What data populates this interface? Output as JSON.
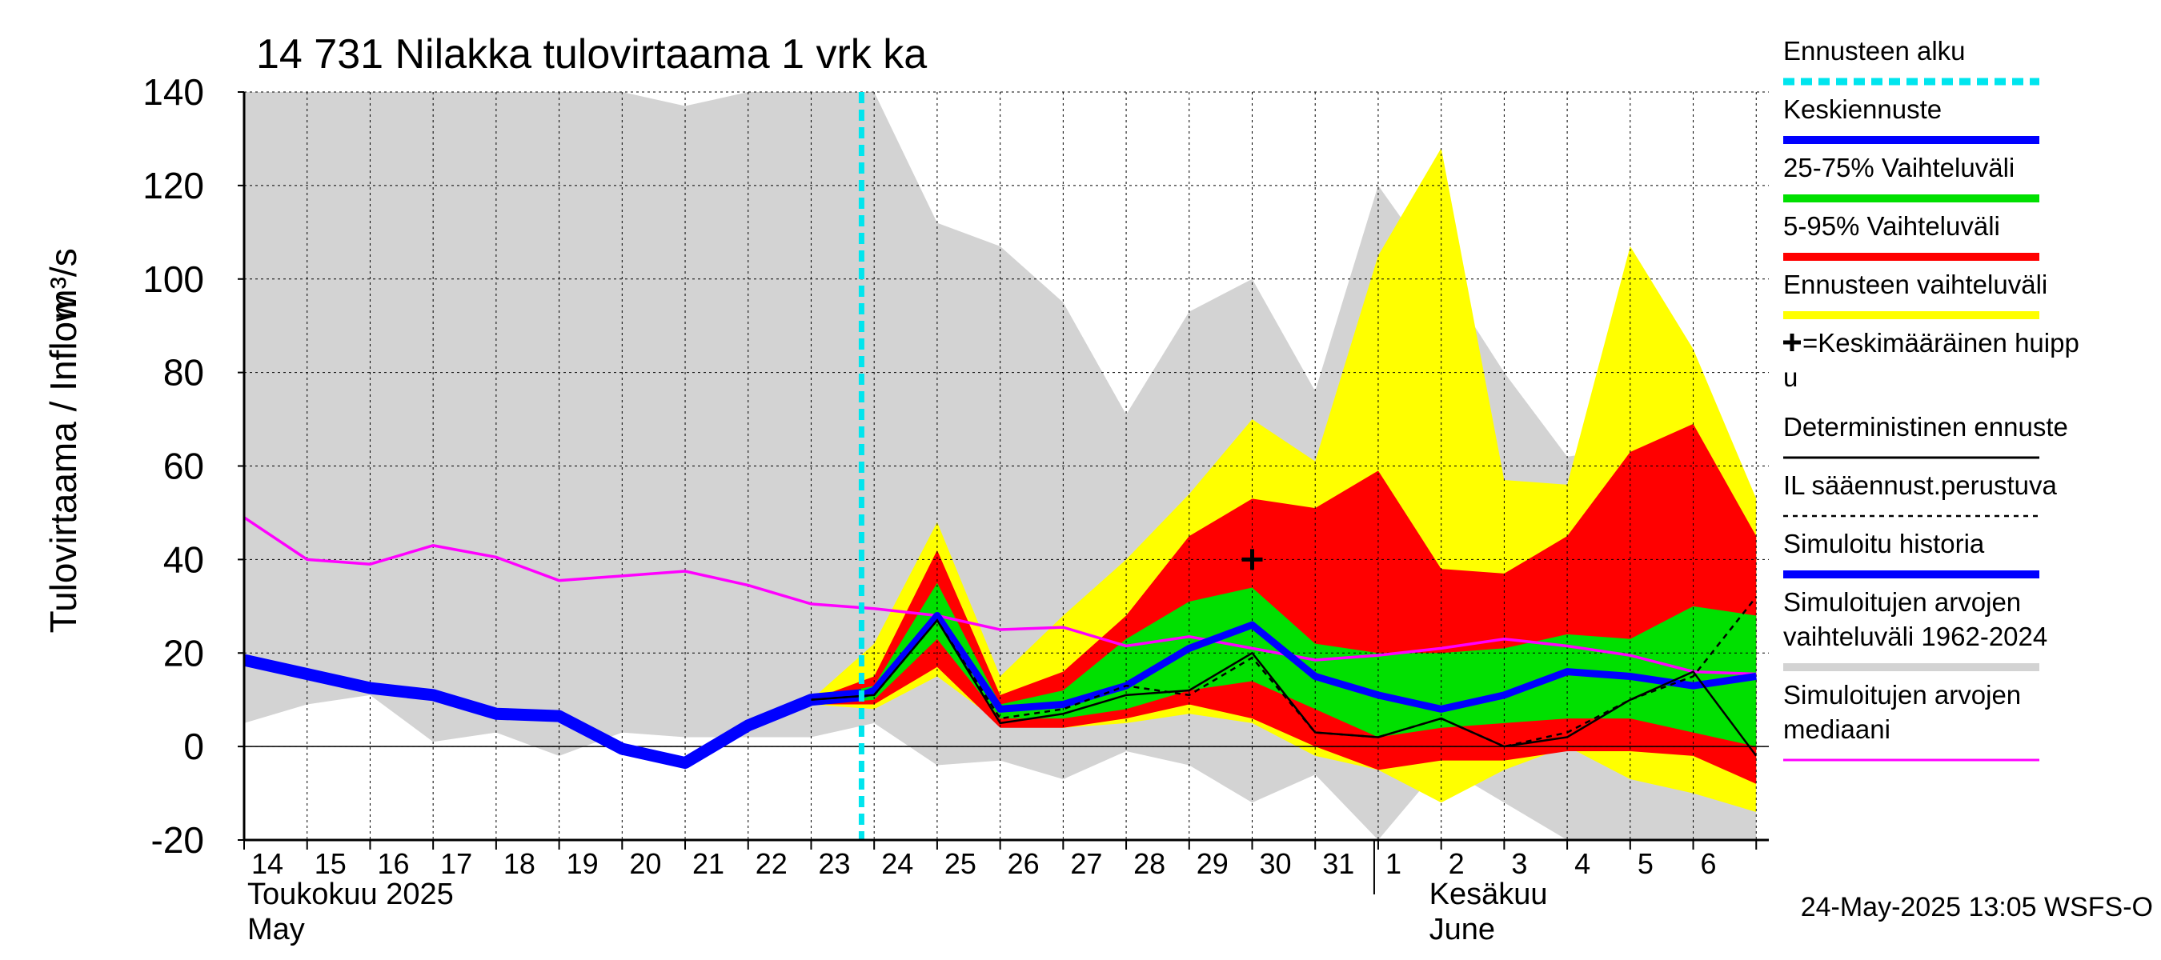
{
  "chart_data": {
    "type": "area",
    "title": "14 731 Nilakka tulovirtaama 1 vrk ka",
    "ylabel": "Tulovirtaama / Inflow",
    "yunit": "m³/s",
    "ylim": [
      -20,
      140
    ],
    "yticks": [
      -20,
      0,
      20,
      40,
      60,
      80,
      100,
      120,
      140
    ],
    "grid": true,
    "x_day_labels": [
      "14",
      "15",
      "16",
      "17",
      "18",
      "19",
      "20",
      "21",
      "22",
      "23",
      "24",
      "25",
      "26",
      "27",
      "28",
      "29",
      "30",
      "31",
      "1",
      "2",
      "3",
      "4",
      "5",
      "6"
    ],
    "month_labels": [
      {
        "line1": "Toukokuu  2025",
        "line2": "May"
      },
      {
        "line1": "Kesäkuu",
        "line2": "June"
      }
    ],
    "timestamp": "24-May-2025 13:05 WSFS-O",
    "forecast_start_day": 23.8,
    "legend_placement": "right",
    "legend": [
      {
        "label": "Ennusteen alku",
        "color": "#00e5ee",
        "style": "dashed-thick"
      },
      {
        "label": "Keskiennuste",
        "color": "#0000ff",
        "style": "solid-thick"
      },
      {
        "label": "25-75% Vaihteluväli",
        "color": "#00e000",
        "style": "solid-thick"
      },
      {
        "label": "5-95% Vaihteluväli",
        "color": "#ff0000",
        "style": "solid-thick"
      },
      {
        "label": "Ennusteen vaihteluväli",
        "color": "#ffff00",
        "style": "solid-thick"
      },
      {
        "label": "=Keskimääräinen huipp",
        "label2": "u",
        "color": "#000000",
        "style": "plus"
      },
      {
        "label": "Deterministinen ennuste",
        "color": "#000000",
        "style": "solid-thin"
      },
      {
        "label": "IL sääennust.perustuva",
        "color": "#000000",
        "style": "dashed-thin"
      },
      {
        "label": "Simuloitu historia",
        "color": "#0000ff",
        "style": "solid-thick"
      },
      {
        "label": "Simuloitujen arvojen",
        "label2": "vaihteluväli 1962-2024",
        "color": "#d3d3d3",
        "style": "solid-thick"
      },
      {
        "label": "Simuloitujen arvojen",
        "label2": "mediaani",
        "color": "#ff00ff",
        "style": "solid-thin"
      }
    ],
    "series": {
      "hist_range": {
        "x": [
          14,
          15,
          16,
          17,
          18,
          19,
          20,
          21,
          22,
          23,
          24,
          25,
          26,
          27,
          28,
          29,
          30,
          31,
          32,
          33,
          34,
          35,
          36,
          37,
          38
        ],
        "upper": [
          140,
          140,
          140,
          140,
          140,
          140,
          140,
          137,
          140,
          140,
          140,
          112,
          107,
          95,
          71,
          93,
          100,
          76,
          120,
          101,
          80,
          62,
          64,
          74,
          50
        ],
        "lower": [
          5,
          9,
          11,
          1,
          3,
          -2,
          3,
          2,
          2,
          2,
          5,
          -4,
          -3,
          -7,
          -1,
          -4,
          -12,
          -6,
          -20,
          -4,
          -12,
          -20,
          -20,
          -20,
          -20
        ]
      },
      "hist_median": {
        "x": [
          14,
          15,
          16,
          17,
          18,
          19,
          20,
          21,
          22,
          23,
          24,
          25,
          26,
          27,
          28,
          29,
          30,
          31,
          32,
          33,
          34,
          35,
          36,
          37,
          38
        ],
        "values": [
          49,
          40,
          39,
          43,
          40.5,
          35.5,
          36.5,
          37.5,
          34.5,
          30.5,
          29.5,
          28,
          25,
          25.5,
          21.5,
          23.5,
          21,
          18.5,
          19.5,
          21,
          23,
          21.5,
          19.5,
          16,
          15.5
        ]
      },
      "ensemble_range": {
        "x": [
          23,
          24,
          25,
          26,
          27,
          28,
          29,
          30,
          31,
          32,
          33,
          34,
          35,
          36,
          37,
          38
        ],
        "upper": [
          10,
          22,
          48,
          15,
          28,
          40,
          54,
          70,
          61,
          105,
          128,
          57,
          56,
          107,
          85,
          53
        ],
        "lower": [
          9,
          8,
          15,
          5,
          4,
          5,
          7,
          5,
          -2,
          -5,
          -12,
          -5,
          0,
          -7,
          -10,
          -14
        ]
      },
      "p5_95": {
        "x": [
          23,
          24,
          25,
          26,
          27,
          28,
          29,
          30,
          31,
          32,
          33,
          34,
          35,
          36,
          37,
          38
        ],
        "upper": [
          10,
          15,
          42,
          11,
          16,
          28,
          45,
          53,
          51,
          59,
          38,
          37,
          45,
          63,
          69,
          45
        ],
        "lower": [
          9,
          9,
          17,
          4,
          4,
          6,
          9,
          6,
          0,
          -5,
          -3,
          -3,
          -1,
          -1,
          -2,
          -8
        ]
      },
      "p25_75": {
        "x": [
          23,
          24,
          25,
          26,
          27,
          28,
          29,
          30,
          31,
          32,
          33,
          34,
          35,
          36,
          37,
          38
        ],
        "upper": [
          10,
          13,
          35,
          9,
          12,
          23,
          31,
          34,
          22,
          20,
          20,
          21,
          24,
          23,
          30,
          28
        ],
        "lower": [
          9,
          10,
          23,
          6,
          6,
          8,
          12,
          14,
          8,
          2,
          4,
          5,
          6,
          6,
          3,
          0
        ]
      },
      "simulated_history": {
        "x": [
          14,
          15,
          16,
          17,
          18,
          19,
          20,
          21,
          22,
          23,
          23.8
        ],
        "values": [
          18.5,
          15.5,
          12.5,
          11,
          7,
          6.5,
          -0.5,
          -3.5,
          4.5,
          10,
          11
        ]
      },
      "mean_forecast": {
        "x": [
          23.8,
          24,
          25,
          26,
          27,
          28,
          29,
          30,
          31,
          32,
          33,
          34,
          35,
          36,
          37,
          38
        ],
        "values": [
          11,
          12,
          28,
          8,
          9,
          13,
          21,
          26,
          15,
          11,
          8,
          11,
          16,
          15,
          13,
          15
        ]
      },
      "deterministic": {
        "x": [
          23,
          24,
          25,
          26,
          27,
          28,
          29,
          30,
          31,
          32,
          33,
          34,
          35,
          36,
          37,
          38
        ],
        "values": [
          10,
          11,
          27,
          5,
          7,
          11,
          12,
          20,
          3,
          2,
          6,
          0,
          2,
          10,
          16,
          -2
        ]
      },
      "il_weather": {
        "x": [
          23,
          24,
          25,
          26,
          27,
          28,
          29,
          30,
          31,
          32,
          33,
          34,
          35,
          36,
          37,
          38
        ],
        "values": [
          10,
          11,
          27,
          6,
          8,
          13,
          11,
          19,
          3,
          2,
          6,
          0,
          3,
          10,
          15,
          32
        ]
      },
      "mean_peak": {
        "x": 30,
        "y": 40
      }
    }
  }
}
